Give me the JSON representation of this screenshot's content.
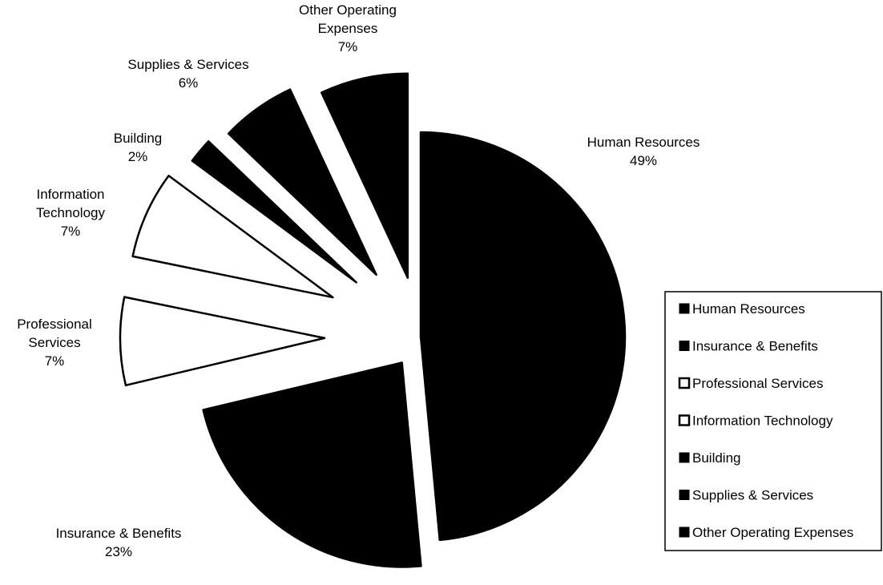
{
  "chart_data": {
    "type": "pie",
    "title": "",
    "exploded": true,
    "slices": [
      {
        "name": "Human Resources",
        "label_lines": [
          "Human Resources"
        ],
        "value": 49,
        "pct_label": "49%",
        "fill": "#000000"
      },
      {
        "name": "Insurance & Benefits",
        "label_lines": [
          "Insurance & Benefits"
        ],
        "value": 23,
        "pct_label": "23%",
        "fill": "#000000"
      },
      {
        "name": "Professional Services",
        "label_lines": [
          "Professional",
          "Services"
        ],
        "value": 7,
        "pct_label": "7%",
        "fill": "#ffffff"
      },
      {
        "name": "Information Technology",
        "label_lines": [
          "Information",
          "Technology"
        ],
        "value": 7,
        "pct_label": "7%",
        "fill": "#ffffff"
      },
      {
        "name": "Building",
        "label_lines": [
          "Building"
        ],
        "value": 2,
        "pct_label": "2%",
        "fill": "#000000"
      },
      {
        "name": "Supplies & Services",
        "label_lines": [
          "Supplies & Services"
        ],
        "value": 6,
        "pct_label": "6%",
        "fill": "#000000"
      },
      {
        "name": "Other Operating Expenses",
        "label_lines": [
          "Other Operating",
          "Expenses"
        ],
        "value": 7,
        "pct_label": "7%",
        "fill": "#000000"
      }
    ],
    "legend": {
      "placement": "right",
      "entries": [
        "Human Resources",
        "Insurance & Benefits",
        "Professional Services",
        "Information Technology",
        "Building",
        "Supplies & Services",
        "Other Operating Expenses"
      ]
    }
  }
}
